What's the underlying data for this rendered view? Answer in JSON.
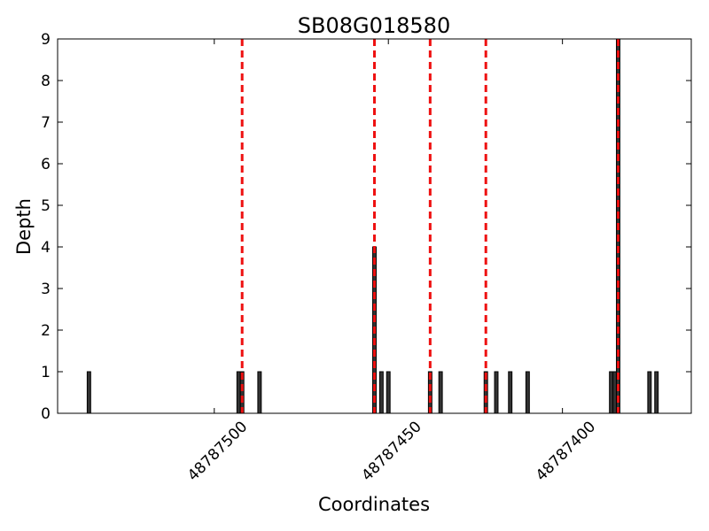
{
  "chart_data": {
    "type": "bar",
    "title": "SB08G018580",
    "xlabel": "Coordinates",
    "ylabel": "Depth",
    "x": [
      48787536,
      48787493,
      48787492,
      48787487,
      48787454,
      48787452,
      48787450,
      48787438,
      48787435,
      48787422,
      48787419,
      48787415,
      48787410,
      48787386,
      48787385,
      48787384,
      48787375,
      48787373
    ],
    "values": [
      1,
      1,
      1,
      1,
      4,
      1,
      1,
      1,
      1,
      1,
      1,
      1,
      1,
      1,
      1,
      9,
      1,
      1
    ],
    "color": "#333333",
    "edgecolor": "#000000",
    "vlines": [
      48787492,
      48787454,
      48787438,
      48787422,
      48787384
    ],
    "vline_color": "#ee1111",
    "xlim": [
      48787545,
      48787363
    ],
    "xticks": [
      48787500,
      48787450,
      48787400
    ],
    "ylim": [
      0,
      9
    ],
    "yticks": [
      0,
      1,
      2,
      3,
      4,
      5,
      6,
      7,
      8,
      9
    ],
    "grid": false
  }
}
